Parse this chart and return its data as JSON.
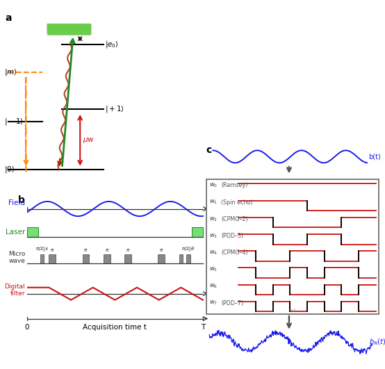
{
  "fig_width": 5.54,
  "fig_height": 5.31,
  "dpi": 100,
  "blue": "#1a1aee",
  "red": "#cc1111",
  "green": "#22aa22",
  "light_green": "#88dd88",
  "orange": "#ff8800",
  "dark_gray": "#555555",
  "mw_gray": "#888888",
  "black": "#000000",
  "walsh_patterns": [
    [
      1,
      1,
      1,
      1,
      1,
      1,
      1,
      1
    ],
    [
      1,
      1,
      1,
      1,
      -1,
      -1,
      -1,
      -1
    ],
    [
      1,
      1,
      -1,
      -1,
      -1,
      -1,
      1,
      1
    ],
    [
      1,
      1,
      -1,
      -1,
      1,
      1,
      -1,
      -1
    ],
    [
      1,
      -1,
      -1,
      1,
      1,
      -1,
      -1,
      1
    ],
    [
      1,
      -1,
      -1,
      1,
      -1,
      1,
      1,
      -1
    ],
    [
      1,
      -1,
      1,
      -1,
      -1,
      1,
      -1,
      1
    ],
    [
      1,
      -1,
      1,
      -1,
      1,
      -1,
      1,
      -1
    ]
  ],
  "walsh_labels": [
    "w_0  (Ramsey)",
    "w_1  (Spin echo)",
    "w_2  (CPMG-2)",
    "w_3  (PDD-3)",
    "w_4  (CPMG-4)",
    "w_5",
    "w_6",
    "w_7  (PDD-7)"
  ]
}
